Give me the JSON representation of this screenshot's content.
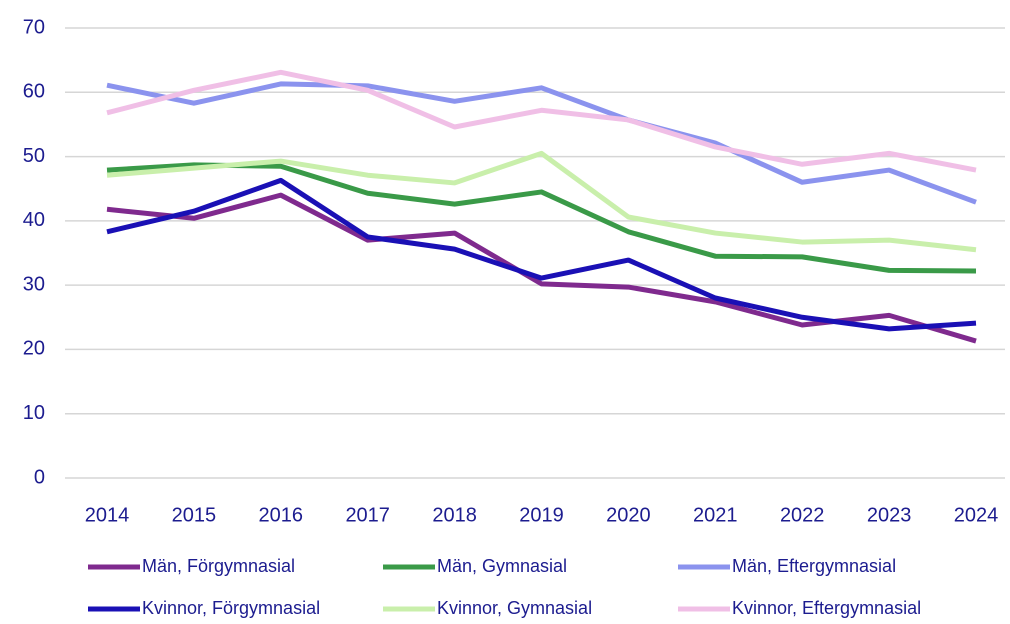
{
  "chart_data": {
    "type": "line",
    "x": [
      "2014",
      "2015",
      "2016",
      "2017",
      "2018",
      "2019",
      "2020",
      "2021",
      "2022",
      "2023",
      "2024"
    ],
    "ylim": [
      0,
      70
    ],
    "yticks": [
      0,
      10,
      20,
      30,
      40,
      50,
      60,
      70
    ],
    "grid": true,
    "series": [
      {
        "name": "Män, Förgymnasial",
        "color": "#7f2a8e",
        "values": [
          41.8,
          40.4,
          44.0,
          37.0,
          38.1,
          30.2,
          29.7,
          27.4,
          23.8,
          25.3,
          21.3
        ]
      },
      {
        "name": "Män, Gymnasial",
        "color": "#3a9a48",
        "values": [
          47.9,
          48.7,
          48.5,
          44.3,
          42.6,
          44.5,
          38.3,
          34.5,
          34.4,
          32.3,
          32.2
        ]
      },
      {
        "name": "Män, Eftergymnasial",
        "color": "#8b93ee",
        "values": [
          61.1,
          58.3,
          61.3,
          61.0,
          58.6,
          60.7,
          55.7,
          52.1,
          46.0,
          47.9,
          42.9
        ]
      },
      {
        "name": "Kvinnor, Förgymnasial",
        "color": "#1a10b5",
        "values": [
          38.3,
          41.5,
          46.3,
          37.5,
          35.6,
          31.1,
          33.9,
          28.0,
          25.0,
          23.2,
          24.1
        ]
      },
      {
        "name": "Kvinnor, Gymnasial",
        "color": "#c9efab",
        "values": [
          47.1,
          48.2,
          49.3,
          47.1,
          45.9,
          50.5,
          40.6,
          38.1,
          36.7,
          37.0,
          35.5
        ]
      },
      {
        "name": "Kvinnor, Eftergymnasial",
        "color": "#f0bfe6",
        "values": [
          56.8,
          60.3,
          63.1,
          60.3,
          54.6,
          57.2,
          55.7,
          51.5,
          48.8,
          50.5,
          47.9
        ]
      }
    ]
  }
}
